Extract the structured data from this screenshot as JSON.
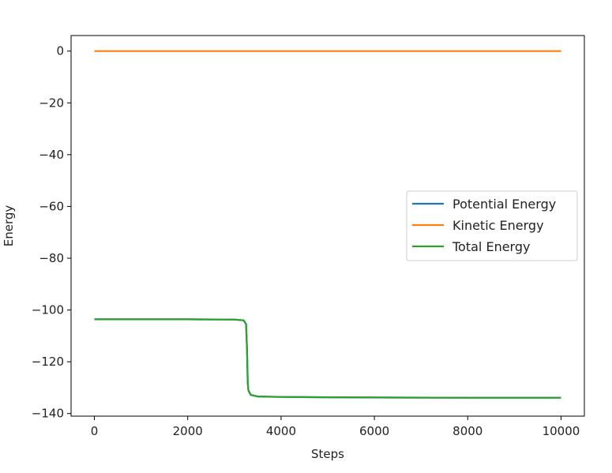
{
  "chart_data": {
    "type": "line",
    "xlabel": "Steps",
    "ylabel": "Energy",
    "xlim": [
      -500,
      10500
    ],
    "ylim": [
      -141,
      6
    ],
    "xticks": [
      0,
      2000,
      4000,
      6000,
      8000,
      10000
    ],
    "xtick_labels": [
      "0",
      "2000",
      "4000",
      "6000",
      "8000",
      "10000"
    ],
    "yticks": [
      0,
      -20,
      -40,
      -60,
      -80,
      -100,
      -120,
      -140
    ],
    "ytick_labels": [
      "0",
      "−20",
      "−40",
      "−60",
      "−80",
      "−100",
      "−120",
      "−140"
    ],
    "legend_position": "center-right",
    "grid": false,
    "series": [
      {
        "name": "Potential Energy",
        "color": "#1f77b4",
        "x": [
          0,
          1000,
          2000,
          3000,
          3200,
          3250,
          3270,
          3285,
          3300,
          3350,
          3500,
          4000,
          5000,
          6000,
          8000,
          10000
        ],
        "y": [
          -103.6,
          -103.6,
          -103.6,
          -103.7,
          -104.0,
          -105.5,
          -115,
          -128,
          -131,
          -132.8,
          -133.4,
          -133.6,
          -133.7,
          -133.8,
          -133.9,
          -133.9
        ]
      },
      {
        "name": "Kinetic Energy",
        "color": "#ff7f0e",
        "x": [
          0,
          2000,
          4000,
          6000,
          8000,
          10000
        ],
        "y": [
          0,
          0,
          0,
          0,
          0,
          0
        ]
      },
      {
        "name": "Total Energy",
        "color": "#2ca02c",
        "x": [
          0,
          1000,
          2000,
          3000,
          3200,
          3250,
          3270,
          3285,
          3300,
          3350,
          3500,
          4000,
          5000,
          6000,
          8000,
          10000
        ],
        "y": [
          -103.6,
          -103.6,
          -103.6,
          -103.7,
          -104.0,
          -105.5,
          -115,
          -128,
          -131,
          -132.8,
          -133.4,
          -133.6,
          -133.7,
          -133.8,
          -133.9,
          -133.9
        ]
      }
    ]
  }
}
